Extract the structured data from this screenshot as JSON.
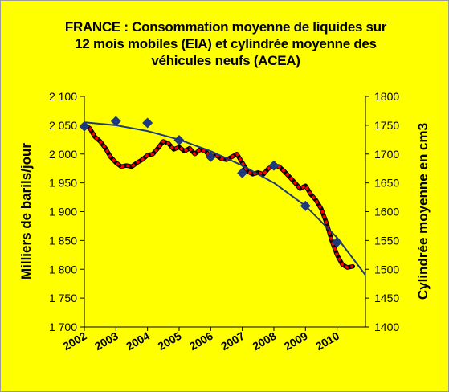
{
  "chart_data": {
    "type": "line",
    "title": "FRANCE : Consommation moyenne de liquides sur 12 mois mobiles (EIA) et cylindrée moyenne des véhicules neufs (ACEA)",
    "title_lines": [
      "FRANCE : Consommation moyenne de liquides sur",
      "12 mois mobiles (EIA) et cylindrée moyenne des",
      "véhicules neufs (ACEA)"
    ],
    "ylabel": "Milliers de barils/jour",
    "y2label": "Cylindrée moyenne en cm3",
    "ylim": [
      1700,
      2100
    ],
    "y2lim": [
      1400,
      1800
    ],
    "xlim": [
      2002,
      2010.9
    ],
    "y_ticks": [
      "2 100",
      "2 050",
      "2 000",
      "1 950",
      "1 900",
      "1 850",
      "1 800",
      "1 750",
      "1 700"
    ],
    "y_tick_values": [
      2100,
      2050,
      2000,
      1950,
      1900,
      1850,
      1800,
      1750,
      1700
    ],
    "y2_ticks": [
      "1800",
      "1750",
      "1700",
      "1650",
      "1600",
      "1550",
      "1500",
      "1450",
      "1400"
    ],
    "y2_tick_values": [
      1800,
      1750,
      1700,
      1650,
      1600,
      1550,
      1500,
      1450,
      1400
    ],
    "x_ticks": [
      "2002",
      "2003",
      "2004",
      "2005",
      "2006",
      "2007",
      "2008",
      "2009",
      "2010"
    ],
    "x_tick_values": [
      2002,
      2003,
      2004,
      2005,
      2006,
      2007,
      2008,
      2009,
      2010
    ],
    "grid": false,
    "legend": "none",
    "colors": {
      "background": "#ffff00",
      "consumption_line": "#000000",
      "consumption_dash": "#ff0000",
      "displacement_markers": "#1f3a7a",
      "trend_line": "#1f3a7a"
    },
    "series": [
      {
        "axis": "left",
        "style": "line",
        "x": [
          2002.0,
          2002.17,
          2002.33,
          2002.5,
          2002.67,
          2002.83,
          2003.0,
          2003.17,
          2003.33,
          2003.5,
          2003.67,
          2003.83,
          2004.0,
          2004.17,
          2004.33,
          2004.5,
          2004.67,
          2004.83,
          2005.0,
          2005.17,
          2005.33,
          2005.5,
          2005.67,
          2005.83,
          2006.0,
          2006.17,
          2006.33,
          2006.5,
          2006.67,
          2006.83,
          2007.0,
          2007.17,
          2007.33,
          2007.5,
          2007.67,
          2007.83,
          2008.0,
          2008.17,
          2008.33,
          2008.5,
          2008.67,
          2008.83,
          2009.0,
          2009.17,
          2009.33,
          2009.5,
          2009.67,
          2009.83,
          2010.0,
          2010.17,
          2010.33,
          2010.5
        ],
        "values": [
          2050,
          2045,
          2030,
          2022,
          2010,
          1995,
          1985,
          1978,
          1980,
          1978,
          1985,
          1990,
          1998,
          2000,
          2010,
          2022,
          2018,
          2008,
          2012,
          2005,
          2010,
          2000,
          2008,
          2005,
          1995,
          1998,
          1992,
          1990,
          1995,
          2000,
          1985,
          1970,
          1965,
          1968,
          1965,
          1975,
          1980,
          1978,
          1970,
          1960,
          1950,
          1940,
          1945,
          1930,
          1920,
          1905,
          1880,
          1850,
          1825,
          1808,
          1803,
          1805
        ]
      },
      {
        "axis": "right",
        "style": "markers",
        "x": [
          2002.0,
          2003.0,
          2004.0,
          2005.0,
          2006.0,
          2007.0,
          2008.0,
          2009.0,
          2010.0
        ],
        "values": [
          1748,
          1757,
          1754,
          1724,
          1695,
          1667,
          1680,
          1610,
          1547
        ]
      },
      {
        "axis": "right",
        "style": "trend",
        "x": [
          2002.0,
          2003.0,
          2004.0,
          2005.0,
          2006.0,
          2007.0,
          2008.0,
          2009.0,
          2010.0,
          2010.9
        ],
        "values": [
          1755,
          1750,
          1740,
          1725,
          1705,
          1680,
          1650,
          1610,
          1555,
          1490
        ]
      }
    ]
  }
}
